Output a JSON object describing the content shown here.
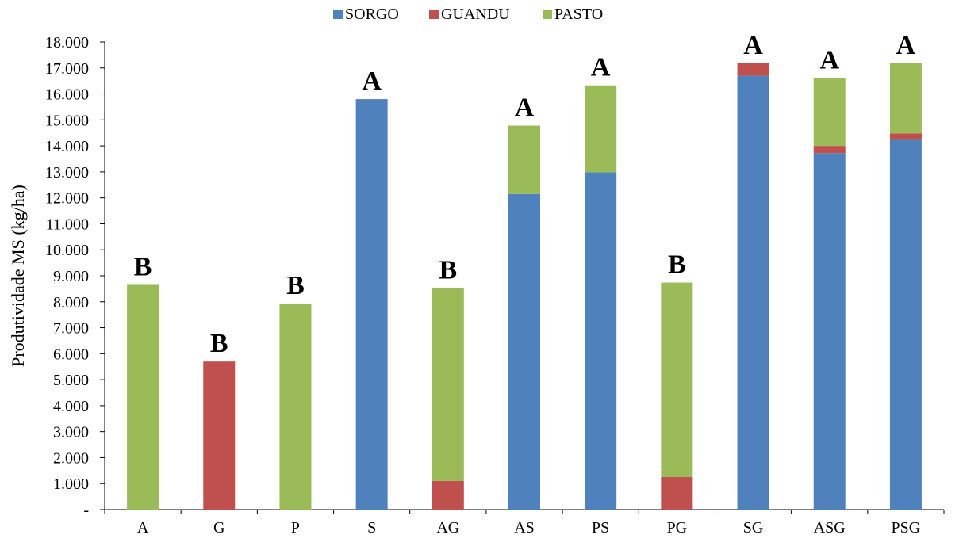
{
  "chart_data": {
    "type": "bar",
    "stacked": true,
    "title": "",
    "xlabel": "",
    "ylabel": "Produtividade MS (kg/ha)",
    "ylim": [
      0,
      18000
    ],
    "yticks": [
      0,
      1000,
      2000,
      3000,
      4000,
      5000,
      6000,
      7000,
      8000,
      9000,
      10000,
      11000,
      12000,
      13000,
      14000,
      15000,
      16000,
      17000,
      18000
    ],
    "ytick_labels": [
      "-",
      "1.000",
      "2.000",
      "3.000",
      "4.000",
      "5.000",
      "6.000",
      "7.000",
      "8.000",
      "9.000",
      "10.000",
      "11.000",
      "12.000",
      "13.000",
      "14.000",
      "15.000",
      "16.000",
      "17.000",
      "18.000"
    ],
    "grid": false,
    "legend_position": "top-center",
    "categories": [
      "A",
      "G",
      "P",
      "S",
      "AG",
      "AS",
      "PS",
      "PG",
      "SG",
      "ASG",
      "PSG"
    ],
    "series": [
      {
        "name": "SORGO",
        "color": "#4F81BD",
        "values": [
          0,
          0,
          0,
          15800,
          0,
          12150,
          12980,
          0,
          16700,
          13720,
          14230
        ]
      },
      {
        "name": "GUANDU",
        "color": "#C0504D",
        "values": [
          0,
          5700,
          0,
          0,
          1100,
          0,
          0,
          1250,
          480,
          280,
          250
        ]
      },
      {
        "name": "PASTO",
        "color": "#9BBB59",
        "values": [
          8650,
          0,
          7930,
          0,
          7420,
          2630,
          3350,
          7490,
          0,
          2610,
          2700
        ]
      }
    ],
    "annotations": [
      "B",
      "B",
      "B",
      "A",
      "B",
      "A",
      "A",
      "B",
      "A",
      "A",
      "A"
    ]
  }
}
